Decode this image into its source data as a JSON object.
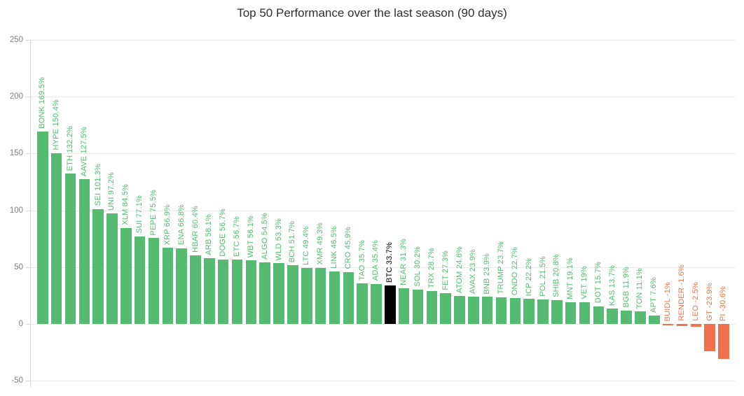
{
  "title": "Top 50 Performance over the last season (90 days)",
  "colors": {
    "positive": "#55bb71",
    "negative": "#f0714d",
    "highlight": "#000000",
    "grid_line": "#ebebeb",
    "axis_line": "#d8d8d8",
    "tick_label": "#7f7f7f",
    "title_text": "#2e2e33",
    "background": "#ffffff"
  },
  "chart_data": {
    "type": "bar",
    "title": "Top 50 Performance over the last season (90 days)",
    "xlabel": "",
    "ylabel": "",
    "unit": "%",
    "ylim": [
      -50,
      250
    ],
    "yticks": [
      250,
      200,
      150,
      100,
      50,
      0,
      -50
    ],
    "grid": true,
    "legend_position": "none",
    "bar_label_format": "{category} {value}%",
    "highlight_category": "BTC",
    "categories": [
      "BONK",
      "HYPE",
      "ETH",
      "AAVE",
      "SEI",
      "UNI",
      "XLM",
      "SUI",
      "PEPE",
      "XRP",
      "ENA",
      "HBAR",
      "ARB",
      "DOGE",
      "ETC",
      "WBT",
      "ALGO",
      "WLD",
      "BCH",
      "LTC",
      "XMR",
      "LINK",
      "CRO",
      "TAO",
      "ADA",
      "BTC",
      "NEAR",
      "SOL",
      "TRX",
      "FET",
      "ATOM",
      "AVAX",
      "BNB",
      "TRUMP",
      "ONDO",
      "ICP",
      "POL",
      "SHIB",
      "MNT",
      "VET",
      "DOT",
      "KAS",
      "BGB",
      "TON",
      "APT",
      "BUIDL",
      "RENDER",
      "LEO",
      "GT",
      "PI"
    ],
    "values": [
      169.5,
      150.4,
      132.2,
      127.5,
      101.3,
      97.2,
      84.5,
      77.1,
      75.5,
      66.9,
      66.8,
      60.4,
      58.1,
      56.7,
      56.7,
      56.1,
      54.5,
      53.3,
      51.7,
      49.4,
      49.3,
      46.5,
      45.9,
      35.7,
      35.4,
      33.7,
      31.3,
      30.2,
      28.7,
      27.3,
      24.6,
      23.9,
      23.9,
      23.7,
      22.7,
      22.2,
      21.5,
      20.8,
      19.1,
      19,
      15.7,
      13.7,
      11.9,
      11.1,
      7.6,
      -1,
      -1.6,
      -2.5,
      -23.9,
      -30.6
    ]
  }
}
